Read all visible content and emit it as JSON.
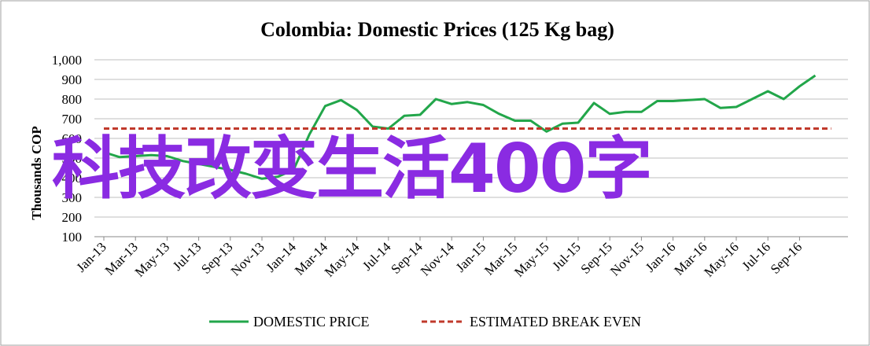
{
  "chart_data": {
    "type": "line",
    "title": "Colombia:  Domestic Prices (125 Kg bag)",
    "ylabel": "Thousands COP",
    "xlabel": "",
    "ylim": [
      100,
      1000
    ],
    "yticks": [
      100,
      200,
      300,
      400,
      500,
      600,
      700,
      800,
      900,
      1000
    ],
    "ytick_labels": [
      "100",
      "200",
      "300",
      "400",
      "500",
      "600",
      "700",
      "800",
      "900",
      "1,000"
    ],
    "xtick_labels": [
      "Jan-13",
      "Mar-13",
      "May-13",
      "Jul-13",
      "Sep-13",
      "Nov-13",
      "Jan-14",
      "Mar-14",
      "May-14",
      "Jul-14",
      "Sep-14",
      "Nov-14",
      "Jan-15",
      "Mar-15",
      "May-15",
      "Jul-15",
      "Sep-15",
      "Nov-15",
      "Jan-16",
      "Mar-16",
      "May-16",
      "Jul-16",
      "Sep-16"
    ],
    "x": [
      "Jan-13",
      "Feb-13",
      "Mar-13",
      "Apr-13",
      "May-13",
      "Jun-13",
      "Jul-13",
      "Aug-13",
      "Sep-13",
      "Oct-13",
      "Nov-13",
      "Dec-13",
      "Jan-14",
      "Feb-14",
      "Mar-14",
      "Apr-14",
      "May-14",
      "Jun-14",
      "Jul-14",
      "Aug-14",
      "Sep-14",
      "Oct-14",
      "Nov-14",
      "Dec-14",
      "Jan-15",
      "Feb-15",
      "Mar-15",
      "Apr-15",
      "May-15",
      "Jun-15",
      "Jul-15",
      "Aug-15",
      "Sep-15",
      "Oct-15",
      "Nov-15",
      "Dec-15",
      "Jan-16",
      "Feb-16",
      "Mar-16",
      "Apr-16",
      "May-16",
      "Jun-16",
      "Jul-16",
      "Aug-16",
      "Sep-16",
      "Oct-16",
      "Nov-16"
    ],
    "series": [
      {
        "name": "DOMESTIC PRICE",
        "color": "#22a64a",
        "style": "solid",
        "values": [
          530,
          505,
          510,
          515,
          510,
          485,
          470,
          455,
          440,
          420,
          395,
          405,
          440,
          620,
          765,
          795,
          745,
          660,
          650,
          715,
          720,
          800,
          775,
          785,
          770,
          725,
          690,
          690,
          635,
          675,
          680,
          780,
          725,
          735,
          735,
          790,
          790,
          795,
          800,
          755,
          760,
          800,
          840,
          800,
          865,
          920,
          null
        ]
      },
      {
        "name": "ESTIMATED BREAK EVEN",
        "color": "#c0392b",
        "style": "dashed",
        "values": [
          650,
          650,
          650,
          650,
          650,
          650,
          650,
          650,
          650,
          650,
          650,
          650,
          650,
          650,
          650,
          650,
          650,
          650,
          650,
          650,
          650,
          650,
          650,
          650,
          650,
          650,
          650,
          650,
          650,
          650,
          650,
          650,
          650,
          650,
          650,
          650,
          650,
          650,
          650,
          650,
          650,
          650,
          650,
          650,
          650,
          650,
          650
        ]
      }
    ],
    "grid": true,
    "legend_position": "bottom"
  },
  "overlay": {
    "text": "科技改变生活400字",
    "color": "#8a2be2"
  }
}
